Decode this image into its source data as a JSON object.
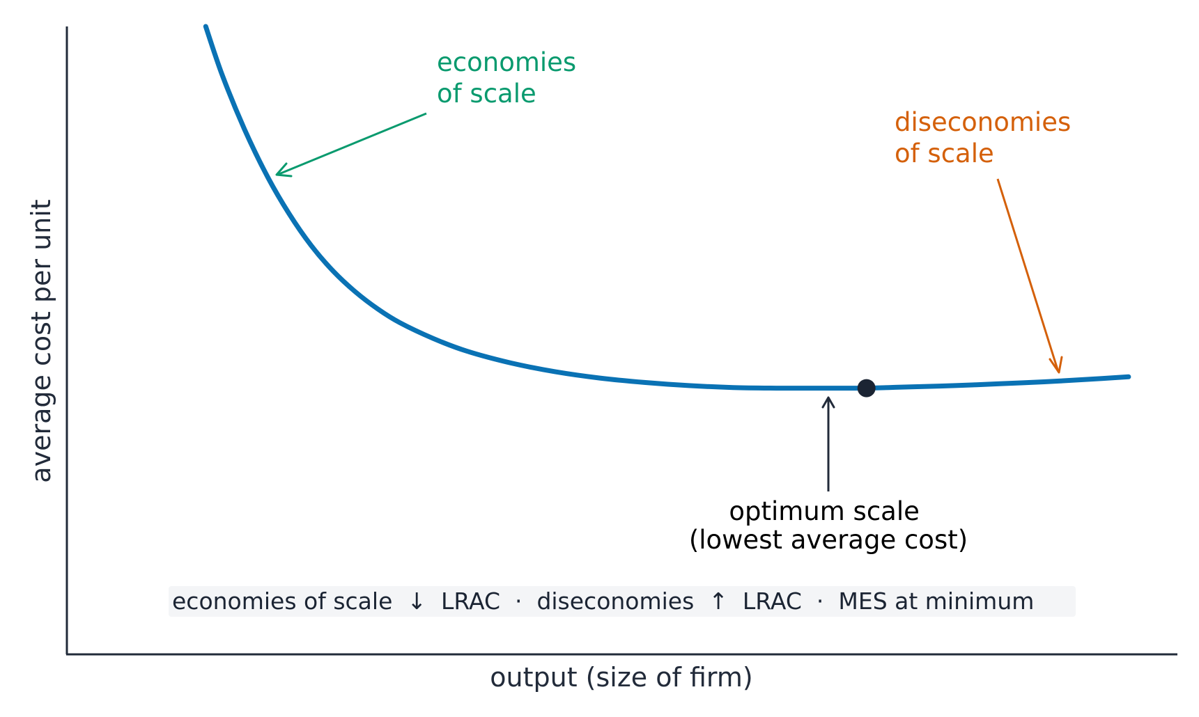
{
  "chart_data": {
    "type": "line",
    "xlabel": "output (size of firm)",
    "ylabel": "average cost per unit",
    "xlim": [
      0,
      100
    ],
    "ylim": [
      0,
      100
    ],
    "grid": false,
    "series": [
      {
        "color": "#0a72b4",
        "x": [
          12.5,
          14,
          16,
          18,
          20,
          22,
          24,
          26,
          28,
          30,
          33,
          36,
          40,
          44,
          48,
          52,
          56,
          60,
          64,
          68,
          70,
          72,
          74,
          76,
          80,
          84,
          88,
          92,
          95.6
        ],
        "y": [
          100,
          92.2,
          83.6,
          76.3,
          70.2,
          65.1,
          61.0,
          57.7,
          55.0,
          52.8,
          50.3,
          48.3,
          46.4,
          45.0,
          44.0,
          43.3,
          42.8,
          42.5,
          42.4,
          42.4,
          42.4,
          42.4,
          42.5,
          42.6,
          42.8,
          43.1,
          43.4,
          43.8,
          44.2
        ]
      }
    ],
    "optimum_point": {
      "x": 72,
      "y": 42.4
    },
    "annotations": {
      "economies": {
        "lines": [
          "economies",
          "of scale"
        ],
        "color": "#099a6e"
      },
      "diseconomies": {
        "lines": [
          "diseconomies",
          "of scale"
        ],
        "color": "#d4600a"
      },
      "optimum": {
        "lines": [
          "optimum scale",
          "(lowest average cost)"
        ],
        "color": "#000000"
      }
    },
    "note": "economies of scale  ↓  LRAC  ·  diseconomies  ↑  LRAC  ·  MES at minimum"
  }
}
